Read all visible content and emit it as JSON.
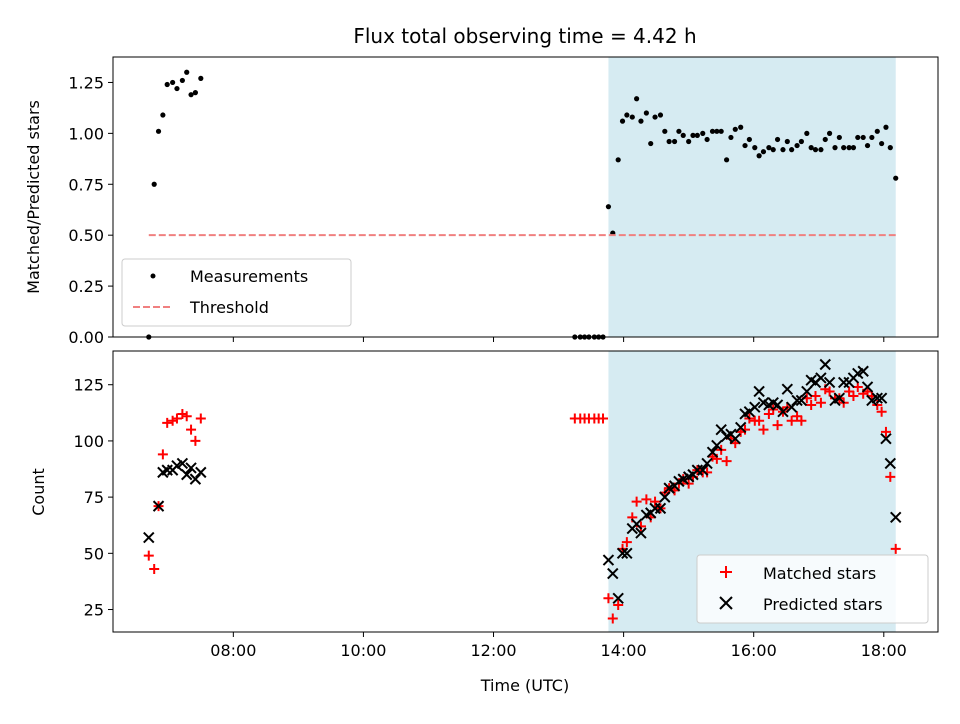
{
  "chart_data": [
    {
      "type": "scatter",
      "title": "Flux total observing time = 4.42 h",
      "xlabel": "",
      "ylabel": "Matched/Predicted stars",
      "xlim": [
        "06:09",
        "18:50"
      ],
      "ylim": [
        0,
        1.375
      ],
      "grid": false,
      "legend_position": "bottom-left",
      "x_ticks": [
        "08:00",
        "10:00",
        "12:00",
        "14:00",
        "16:00",
        "18:00"
      ],
      "y_ticks": [
        0.0,
        0.25,
        0.5,
        0.75,
        1.0,
        1.25
      ],
      "y_tick_labels": [
        "0.00",
        "0.25",
        "0.50",
        "0.75",
        "1.00",
        "1.25"
      ],
      "shaded_region": {
        "x0": "13:46",
        "x1": "18:11",
        "color": "#add8e6"
      },
      "series": [
        {
          "name": "Measurements",
          "marker": "dot",
          "color": "#000000",
          "points": [
            [
              "06:42",
              0.0
            ],
            [
              "06:47",
              0.75
            ],
            [
              "06:51",
              1.01
            ],
            [
              "06:55",
              1.09
            ],
            [
              "06:59",
              1.24
            ],
            [
              "07:04",
              1.25
            ],
            [
              "07:08",
              1.22
            ],
            [
              "07:13",
              1.26
            ],
            [
              "07:17",
              1.3
            ],
            [
              "07:21",
              1.19
            ],
            [
              "07:25",
              1.2
            ],
            [
              "07:30",
              1.27
            ],
            [
              "13:15",
              0.0
            ],
            [
              "13:20",
              0.0
            ],
            [
              "13:24",
              0.0
            ],
            [
              "13:28",
              0.0
            ],
            [
              "13:33",
              0.0
            ],
            [
              "13:37",
              0.0
            ],
            [
              "13:41",
              0.0
            ],
            [
              "13:46",
              0.64
            ],
            [
              "13:50",
              0.51
            ],
            [
              "13:55",
              0.87
            ],
            [
              "13:59",
              1.06
            ],
            [
              "14:03",
              1.09
            ],
            [
              "14:08",
              1.08
            ],
            [
              "14:12",
              1.17
            ],
            [
              "14:16",
              1.06
            ],
            [
              "14:21",
              1.1
            ],
            [
              "14:25",
              0.95
            ],
            [
              "14:29",
              1.08
            ],
            [
              "14:34",
              1.09
            ],
            [
              "14:38",
              1.01
            ],
            [
              "14:42",
              0.96
            ],
            [
              "14:47",
              0.96
            ],
            [
              "14:51",
              1.01
            ],
            [
              "14:55",
              0.99
            ],
            [
              "15:00",
              0.96
            ],
            [
              "15:04",
              0.99
            ],
            [
              "15:08",
              0.99
            ],
            [
              "15:13",
              1.0
            ],
            [
              "15:17",
              0.97
            ],
            [
              "15:22",
              1.01
            ],
            [
              "15:26",
              1.01
            ],
            [
              "15:30",
              1.01
            ],
            [
              "15:35",
              0.87
            ],
            [
              "15:39",
              0.98
            ],
            [
              "15:43",
              1.02
            ],
            [
              "15:48",
              1.03
            ],
            [
              "15:52",
              0.94
            ],
            [
              "15:56",
              0.97
            ],
            [
              "16:01",
              0.93
            ],
            [
              "16:05",
              0.89
            ],
            [
              "16:09",
              0.91
            ],
            [
              "16:14",
              0.93
            ],
            [
              "16:18",
              0.92
            ],
            [
              "16:22",
              0.97
            ],
            [
              "16:27",
              0.92
            ],
            [
              "16:31",
              0.96
            ],
            [
              "16:35",
              0.92
            ],
            [
              "16:40",
              0.94
            ],
            [
              "16:44",
              0.96
            ],
            [
              "16:49",
              1.0
            ],
            [
              "16:53",
              0.93
            ],
            [
              "16:57",
              0.92
            ],
            [
              "17:02",
              0.92
            ],
            [
              "17:06",
              0.97
            ],
            [
              "17:10",
              1.0
            ],
            [
              "17:15",
              0.93
            ],
            [
              "17:19",
              0.98
            ],
            [
              "17:23",
              0.93
            ],
            [
              "17:28",
              0.93
            ],
            [
              "17:32",
              0.93
            ],
            [
              "17:36",
              0.98
            ],
            [
              "17:41",
              0.98
            ],
            [
              "17:45",
              0.94
            ],
            [
              "17:49",
              0.98
            ],
            [
              "17:54",
              1.01
            ],
            [
              "17:58",
              0.95
            ],
            [
              "18:02",
              1.03
            ],
            [
              "18:06",
              0.93
            ],
            [
              "18:11",
              0.78
            ]
          ]
        },
        {
          "name": "Threshold",
          "marker": "dashed-line",
          "color": "#f08080",
          "points": [
            [
              "06:42",
              0.5
            ],
            [
              "18:11",
              0.5
            ]
          ]
        }
      ]
    },
    {
      "type": "scatter",
      "title": "",
      "xlabel": "Time (UTC)",
      "ylabel": "Count",
      "xlim": [
        "06:09",
        "18:50"
      ],
      "ylim": [
        15,
        140
      ],
      "grid": false,
      "legend_position": "bottom-right",
      "x_ticks": [
        "08:00",
        "10:00",
        "12:00",
        "14:00",
        "16:00",
        "18:00"
      ],
      "x_tick_labels": [
        "08:00",
        "10:00",
        "12:00",
        "14:00",
        "16:00",
        "18:00"
      ],
      "y_ticks": [
        25,
        50,
        75,
        100,
        125
      ],
      "y_tick_labels": [
        "25",
        "50",
        "75",
        "100",
        "125"
      ],
      "shaded_region": {
        "x0": "13:46",
        "x1": "18:11",
        "color": "#add8e6"
      },
      "series": [
        {
          "name": "Matched stars",
          "marker": "plus",
          "color": "#ff0000",
          "points": [
            [
              "06:42",
              49
            ],
            [
              "06:47",
              43
            ],
            [
              "06:51",
              71
            ],
            [
              "06:55",
              94
            ],
            [
              "06:59",
              108
            ],
            [
              "07:04",
              109
            ],
            [
              "07:08",
              110
            ],
            [
              "07:13",
              112
            ],
            [
              "07:17",
              111
            ],
            [
              "07:21",
              105
            ],
            [
              "07:25",
              100
            ],
            [
              "07:30",
              110
            ],
            [
              "13:15",
              110
            ],
            [
              "13:20",
              110
            ],
            [
              "13:24",
              110
            ],
            [
              "13:28",
              110
            ],
            [
              "13:33",
              110
            ],
            [
              "13:37",
              110
            ],
            [
              "13:41",
              110
            ],
            [
              "13:46",
              30
            ],
            [
              "13:50",
              21
            ],
            [
              "13:55",
              27
            ],
            [
              "13:59",
              52
            ],
            [
              "14:03",
              55
            ],
            [
              "14:08",
              66
            ],
            [
              "14:12",
              73
            ],
            [
              "14:16",
              62
            ],
            [
              "14:21",
              74
            ],
            [
              "14:25",
              66
            ],
            [
              "14:29",
              73
            ],
            [
              "14:34",
              70
            ],
            [
              "14:38",
              77
            ],
            [
              "14:42",
              79
            ],
            [
              "14:47",
              78
            ],
            [
              "14:51",
              81
            ],
            [
              "14:55",
              83
            ],
            [
              "15:00",
              81
            ],
            [
              "15:04",
              84
            ],
            [
              "15:08",
              87
            ],
            [
              "15:13",
              86
            ],
            [
              "15:17",
              86
            ],
            [
              "15:22",
              93
            ],
            [
              "15:26",
              92
            ],
            [
              "15:30",
              96
            ],
            [
              "15:35",
              91
            ],
            [
              "15:39",
              101
            ],
            [
              "15:43",
              99
            ],
            [
              "15:48",
              104
            ],
            [
              "15:52",
              105
            ],
            [
              "15:56",
              110
            ],
            [
              "16:01",
              109
            ],
            [
              "16:05",
              109
            ],
            [
              "16:09",
              105
            ],
            [
              "16:14",
              112
            ],
            [
              "16:18",
              114
            ],
            [
              "16:22",
              107
            ],
            [
              "16:27",
              113
            ],
            [
              "16:31",
              115
            ],
            [
              "16:35",
              109
            ],
            [
              "16:40",
              111
            ],
            [
              "16:44",
              109
            ],
            [
              "16:49",
              119
            ],
            [
              "16:53",
              116
            ],
            [
              "16:57",
              120
            ],
            [
              "17:02",
              117
            ],
            [
              "17:06",
              123
            ],
            [
              "17:10",
              122
            ],
            [
              "17:15",
              119
            ],
            [
              "17:19",
              119
            ],
            [
              "17:23",
              117
            ],
            [
              "17:28",
              122
            ],
            [
              "17:32",
              120
            ],
            [
              "17:36",
              124
            ],
            [
              "17:41",
              121
            ],
            [
              "17:45",
              122
            ],
            [
              "17:49",
              120
            ],
            [
              "17:54",
              116
            ],
            [
              "17:58",
              113
            ],
            [
              "18:02",
              104
            ],
            [
              "18:06",
              84
            ],
            [
              "18:11",
              52
            ]
          ]
        },
        {
          "name": "Predicted stars",
          "marker": "x",
          "color": "#000000",
          "points": [
            [
              "06:42",
              57
            ],
            [
              "06:51",
              71
            ],
            [
              "06:55",
              86
            ],
            [
              "06:59",
              87
            ],
            [
              "07:04",
              87
            ],
            [
              "07:08",
              89
            ],
            [
              "07:13",
              90
            ],
            [
              "07:17",
              85
            ],
            [
              "07:21",
              88
            ],
            [
              "07:25",
              83
            ],
            [
              "07:30",
              86
            ],
            [
              "13:46",
              47
            ],
            [
              "13:50",
              41
            ],
            [
              "13:55",
              30
            ],
            [
              "13:59",
              50
            ],
            [
              "14:03",
              50
            ],
            [
              "14:08",
              61
            ],
            [
              "14:12",
              63
            ],
            [
              "14:16",
              59
            ],
            [
              "14:21",
              67
            ],
            [
              "14:25",
              68
            ],
            [
              "14:29",
              70
            ],
            [
              "14:34",
              70
            ],
            [
              "14:38",
              75
            ],
            [
              "14:42",
              79
            ],
            [
              "14:47",
              80
            ],
            [
              "14:51",
              82
            ],
            [
              "14:55",
              83
            ],
            [
              "15:00",
              84
            ],
            [
              "15:04",
              85
            ],
            [
              "15:08",
              87
            ],
            [
              "15:13",
              87
            ],
            [
              "15:17",
              90
            ],
            [
              "15:22",
              95
            ],
            [
              "15:26",
              98
            ],
            [
              "15:30",
              105
            ],
            [
              "15:35",
              102
            ],
            [
              "15:39",
              103
            ],
            [
              "15:43",
              101
            ],
            [
              "15:48",
              106
            ],
            [
              "15:52",
              112
            ],
            [
              "15:56",
              113
            ],
            [
              "16:01",
              115
            ],
            [
              "16:05",
              122
            ],
            [
              "16:09",
              117
            ],
            [
              "16:14",
              116
            ],
            [
              "16:18",
              117
            ],
            [
              "16:22",
              116
            ],
            [
              "16:27",
              113
            ],
            [
              "16:31",
              123
            ],
            [
              "16:35",
              115
            ],
            [
              "16:40",
              118
            ],
            [
              "16:44",
              118
            ],
            [
              "16:49",
              122
            ],
            [
              "16:53",
              127
            ],
            [
              "16:57",
              126
            ],
            [
              "17:02",
              128
            ],
            [
              "17:06",
              134
            ],
            [
              "17:10",
              126
            ],
            [
              "17:15",
              118
            ],
            [
              "17:19",
              119
            ],
            [
              "17:23",
              126
            ],
            [
              "17:28",
              126
            ],
            [
              "17:32",
              128
            ],
            [
              "17:36",
              130
            ],
            [
              "17:41",
              131
            ],
            [
              "17:45",
              124
            ],
            [
              "17:49",
              118
            ],
            [
              "17:54",
              119
            ],
            [
              "17:58",
              119
            ],
            [
              "18:02",
              101
            ],
            [
              "18:06",
              90
            ],
            [
              "18:11",
              66
            ]
          ]
        }
      ]
    }
  ]
}
